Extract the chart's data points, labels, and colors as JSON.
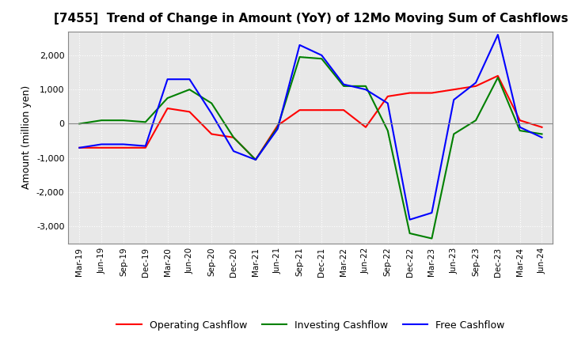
{
  "title": "[7455]  Trend of Change in Amount (YoY) of 12Mo Moving Sum of Cashflows",
  "ylabel": "Amount (million yen)",
  "x_labels": [
    "Mar-19",
    "Jun-19",
    "Sep-19",
    "Dec-19",
    "Mar-20",
    "Jun-20",
    "Sep-20",
    "Dec-20",
    "Mar-21",
    "Jun-21",
    "Sep-21",
    "Dec-21",
    "Mar-22",
    "Jun-22",
    "Sep-22",
    "Dec-22",
    "Mar-23",
    "Jun-23",
    "Sep-23",
    "Dec-23",
    "Mar-24",
    "Jun-24"
  ],
  "operating": [
    -700,
    -700,
    -700,
    -700,
    450,
    350,
    -300,
    -400,
    -1050,
    -50,
    400,
    400,
    400,
    -100,
    800,
    900,
    900,
    1000,
    1100,
    1400,
    100,
    -100
  ],
  "investing": [
    0,
    100,
    100,
    50,
    750,
    1000,
    600,
    -400,
    -1050,
    -100,
    1950,
    1900,
    1100,
    1100,
    -200,
    -3200,
    -3350,
    -300,
    100,
    1350,
    -200,
    -300
  ],
  "free": [
    -700,
    -600,
    -600,
    -650,
    1300,
    1300,
    300,
    -800,
    -1050,
    -150,
    2300,
    2000,
    1150,
    1000,
    600,
    -2800,
    -2600,
    700,
    1200,
    2600,
    -100,
    -400
  ],
  "ylim": [
    -3500,
    2700
  ],
  "yticks": [
    -3000,
    -2000,
    -1000,
    0,
    1000,
    2000
  ],
  "operating_color": "#ff0000",
  "investing_color": "#008000",
  "free_color": "#0000ff",
  "background_color": "#e8e8e8",
  "grid_color": "#ffffff",
  "title_fontsize": 11,
  "legend_labels": [
    "Operating Cashflow",
    "Investing Cashflow",
    "Free Cashflow"
  ]
}
